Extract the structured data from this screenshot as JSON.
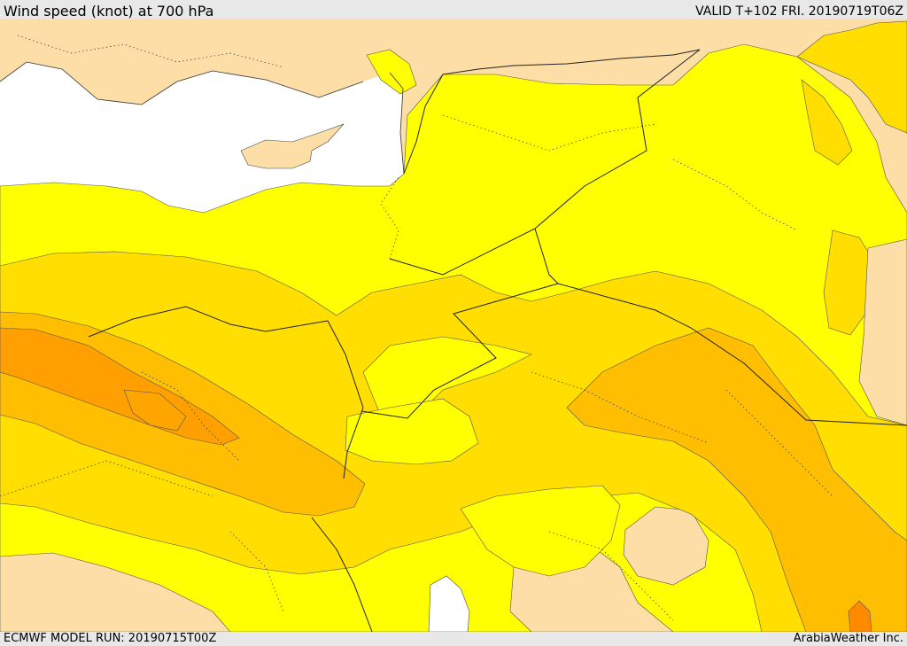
{
  "header": {
    "title": "Wind speed (knot) at 700 hPa",
    "valid": "VALID T+102 FRI. 20190719T06Z"
  },
  "footer": {
    "model_run": "ECMWF MODEL RUN: 20190715T00Z",
    "credit": "ArabiaWeather Inc."
  },
  "colors": {
    "background": "#e8e8e8",
    "sea": "#ffffff",
    "land_low_wind": "#fddea6",
    "band_1": "#ffff00",
    "band_2": "#ffde00",
    "band_3": "#ffbe00",
    "band_4": "#ff9f00",
    "band_5": "#ff8000"
  }
}
